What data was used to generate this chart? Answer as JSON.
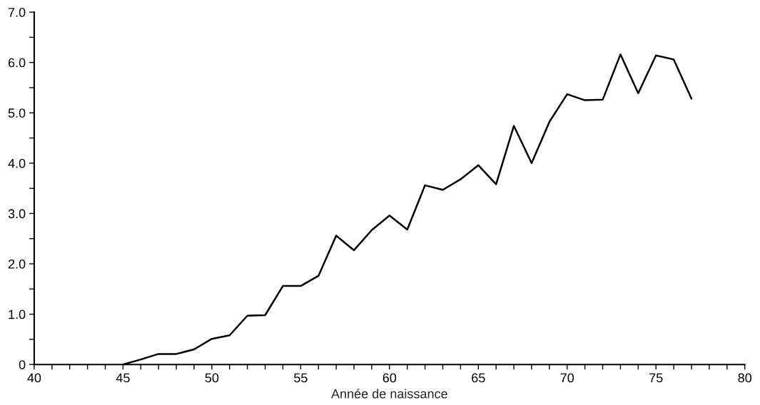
{
  "chart_data": {
    "type": "line",
    "xlabel": "Année de naissance",
    "x": [
      45,
      46,
      47,
      48,
      49,
      50,
      51,
      52,
      53,
      54,
      55,
      56,
      57,
      58,
      59,
      60,
      61,
      62,
      63,
      64,
      65,
      66,
      67,
      68,
      69,
      70,
      71,
      72,
      73,
      74,
      75,
      76,
      77
    ],
    "series": [
      {
        "color": "#000000",
        "values": [
          0.0,
          0.1,
          0.21,
          0.21,
          0.3,
          0.51,
          0.58,
          0.97,
          0.98,
          1.56,
          1.56,
          1.76,
          2.56,
          2.27,
          2.67,
          2.96,
          2.68,
          3.56,
          3.47,
          3.68,
          3.96,
          3.58,
          4.74,
          4.0,
          4.82,
          5.37,
          5.25,
          5.26,
          6.16,
          5.39,
          6.14,
          6.06,
          5.28
        ]
      }
    ],
    "xlim": [
      40,
      80
    ],
    "xticks": [
      40,
      {
        "value": 41,
        "label": null
      },
      {
        "value": 42,
        "label": null
      },
      {
        "value": 43,
        "label": null
      },
      {
        "value": 44,
        "label": null
      },
      45,
      {
        "value": 46,
        "label": null
      },
      {
        "value": 47,
        "label": null
      },
      {
        "value": 48,
        "label": null
      },
      {
        "value": 49,
        "label": null
      },
      50,
      {
        "value": 51,
        "label": null
      },
      {
        "value": 52,
        "label": null
      },
      {
        "value": 53,
        "label": null
      },
      {
        "value": 54,
        "label": null
      },
      55,
      {
        "value": 56,
        "label": null
      },
      {
        "value": 57,
        "label": null
      },
      {
        "value": 58,
        "label": null
      },
      {
        "value": 59,
        "label": null
      },
      60,
      {
        "value": 61,
        "label": null
      },
      {
        "value": 62,
        "label": null
      },
      {
        "value": 63,
        "label": null
      },
      {
        "value": 64,
        "label": null
      },
      65,
      {
        "value": 66,
        "label": null
      },
      {
        "value": 67,
        "label": null
      },
      {
        "value": 68,
        "label": null
      },
      {
        "value": 69,
        "label": null
      },
      70,
      {
        "value": 71,
        "label": null
      },
      {
        "value": 72,
        "label": null
      },
      {
        "value": 73,
        "label": null
      },
      {
        "value": 74,
        "label": null
      },
      75,
      {
        "value": 76,
        "label": null
      },
      {
        "value": 77,
        "label": null
      },
      {
        "value": 78,
        "label": null
      },
      {
        "value": 79,
        "label": null
      },
      80
    ],
    "ylim": [
      0,
      7
    ],
    "yticks": [
      0,
      {
        "value": 0.5,
        "label": null
      },
      {
        "value": 1,
        "label": "1.0"
      },
      {
        "value": 1.5,
        "label": null
      },
      {
        "value": 2,
        "label": "2.0"
      },
      {
        "value": 2.5,
        "label": null
      },
      {
        "value": 3,
        "label": "3.0"
      },
      {
        "value": 3.5,
        "label": null
      },
      {
        "value": 4,
        "label": "4.0"
      },
      {
        "value": 4.5,
        "label": null
      },
      {
        "value": 5,
        "label": "5.0"
      },
      {
        "value": 5.5,
        "label": null
      },
      {
        "value": 6,
        "label": "6.0"
      },
      {
        "value": 6.5,
        "label": null
      },
      {
        "value": 7,
        "label": "7.0"
      }
    ],
    "grid": false,
    "legend": false,
    "marker": "none",
    "line_style": "solid"
  }
}
